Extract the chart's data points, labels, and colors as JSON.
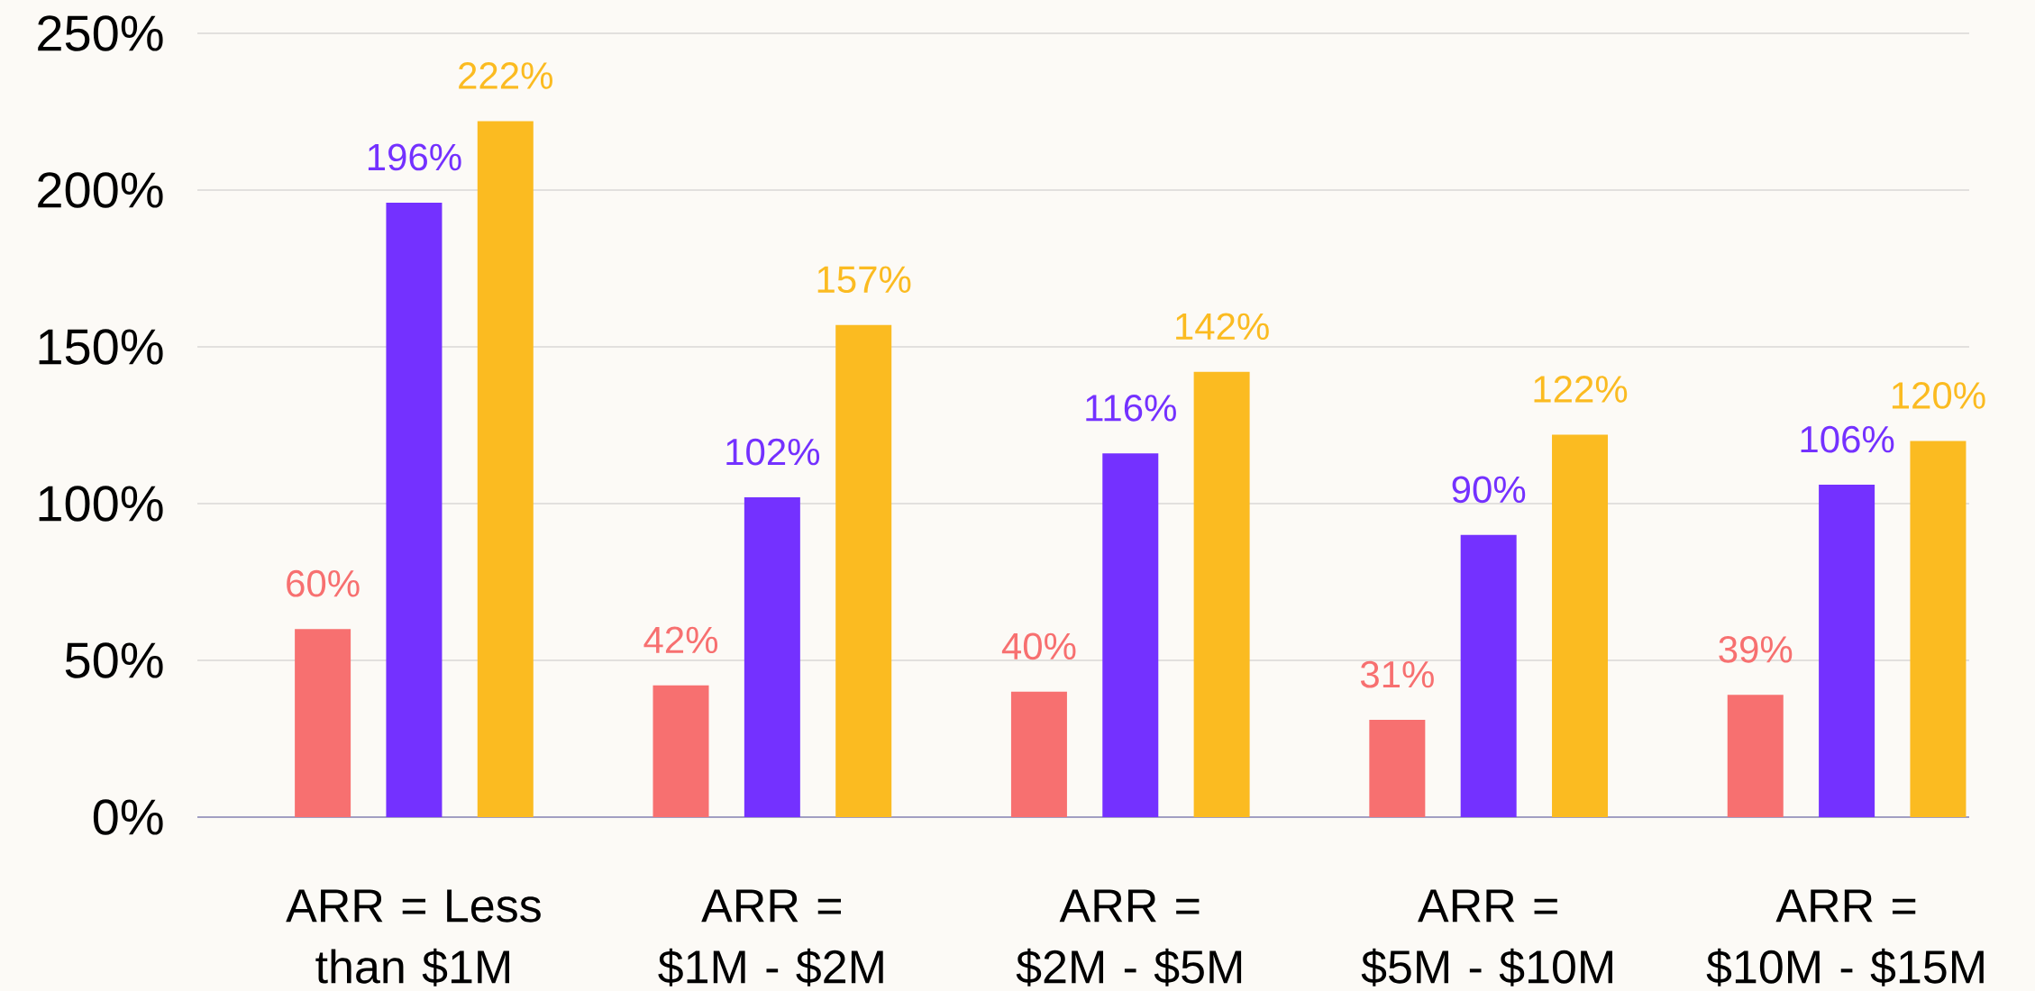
{
  "chart_data": {
    "type": "bar",
    "categories": [
      "ARR = Less than $1M",
      "ARR = $1M - $2M",
      "ARR = $2M - $5M",
      "ARR = $5M - $10M",
      "ARR = $10M - $15M"
    ],
    "series": [
      {
        "color": "#f77070",
        "values": [
          60,
          42,
          40,
          31,
          39
        ],
        "value_labels": [
          "60%",
          "42%",
          "40%",
          "31%",
          "39%"
        ]
      },
      {
        "color": "#7431ff",
        "values": [
          196,
          102,
          116,
          90,
          106
        ],
        "value_labels": [
          "196%",
          "102%",
          "116%",
          "90%",
          "106%"
        ]
      },
      {
        "color": "#fbbb21",
        "values": [
          222,
          157,
          142,
          122,
          120
        ],
        "value_labels": [
          "222%",
          "157%",
          "142%",
          "122%",
          "120%"
        ]
      }
    ],
    "ylim": [
      0,
      250
    ],
    "yticks": [
      {
        "value": 0,
        "label": "0%"
      },
      {
        "value": 50,
        "label": "50%"
      },
      {
        "value": 100,
        "label": "100%"
      },
      {
        "value": 150,
        "label": "150%"
      },
      {
        "value": 200,
        "label": "200%"
      },
      {
        "value": 250,
        "label": "250%"
      }
    ],
    "grid": "y"
  }
}
